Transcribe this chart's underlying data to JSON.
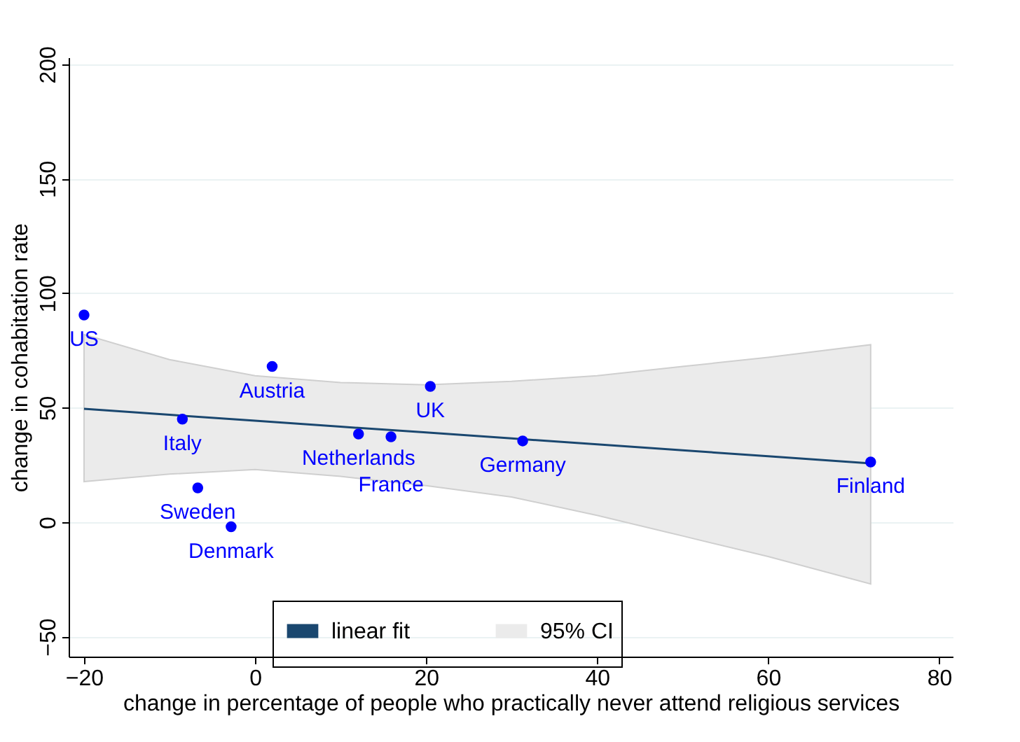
{
  "chart_data": {
    "type": "scatter",
    "xlabel": "change in percentage of people who practically never attend religious services",
    "ylabel": "change in cohabitation rate",
    "xlim": [
      -21.8,
      81.6
    ],
    "ylim": [
      -58.7,
      203
    ],
    "xticks": [
      -20,
      0,
      20,
      40,
      60,
      80
    ],
    "yticks": [
      -50,
      0,
      50,
      100,
      150,
      200
    ],
    "grid": "y",
    "legend": "bottom",
    "series": [
      {
        "type": "line",
        "name": "linear fit",
        "color": "#1a476f",
        "x": [
          -20,
          -10,
          0,
          10,
          20,
          30,
          40,
          50,
          60,
          72
        ],
        "values": [
          49.5,
          46.9,
          44.3,
          41.7,
          39.2,
          36.6,
          34,
          31.4,
          28.8,
          25.7
        ],
        "lower": [
          17.7,
          21,
          23,
          20,
          16,
          11,
          3,
          -6,
          -15,
          -27
        ],
        "upper": [
          82,
          71,
          64,
          61,
          60,
          61.5,
          64,
          68,
          72,
          77.5
        ]
      },
      {
        "color": "#0000ff",
        "marker": "circle",
        "x": [
          -20,
          -8.5,
          2,
          -6.7,
          -2.8,
          12.1,
          15.9,
          20.5,
          31.3,
          72
        ],
        "values": [
          90.5,
          45,
          68,
          15,
          -2,
          38.5,
          37.3,
          59.3,
          35.5,
          26.3
        ]
      }
    ],
    "annotations": [
      "95% CI",
      {
        "text": "US",
        "x": -20,
        "y": 90.5
      },
      {
        "text": "Italy",
        "x": -8.5,
        "y": 45
      },
      {
        "text": "Austria",
        "x": 2,
        "y": 68
      },
      {
        "text": "Sweden",
        "x": -6.7,
        "y": 15
      },
      {
        "text": "Denmark",
        "x": -2.8,
        "y": -2
      },
      {
        "text": "Netherlands",
        "x": 12.1,
        "y": 38.5
      },
      {
        "text": "France",
        "x": 15.9,
        "y": 37.3
      },
      {
        "text": "UK",
        "x": 20.5,
        "y": 59.3
      },
      {
        "text": "Germany",
        "x": 31.3,
        "y": 35.5
      },
      {
        "text": "Finland",
        "x": 72,
        "y": 26.3
      }
    ]
  }
}
